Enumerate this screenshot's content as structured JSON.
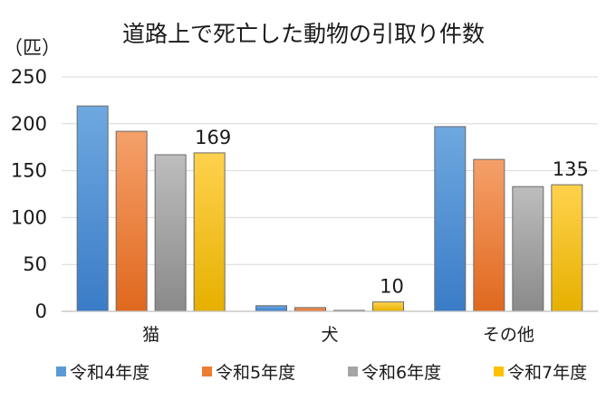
{
  "chart_data": {
    "type": "bar",
    "title": "道路上で死亡した動物の引取り件数",
    "ylabel": "（匹）",
    "xlabel": "",
    "categories": [
      "猫",
      "犬",
      "その他"
    ],
    "ylim": [
      0,
      250
    ],
    "yticks": [
      0,
      50,
      100,
      150,
      200,
      250
    ],
    "grid": true,
    "legend_position": "bottom",
    "series": [
      {
        "name": "令和4年度",
        "values": [
          219,
          6,
          197
        ],
        "color_top": "#6fa8e0",
        "color_bottom": "#3a7cc7",
        "legend_color": "#5b9bd5"
      },
      {
        "name": "令和5年度",
        "values": [
          192,
          4,
          162
        ],
        "color_top": "#f5a06a",
        "color_bottom": "#e0681e",
        "legend_color": "#ed7d31"
      },
      {
        "name": "令和6年度",
        "values": [
          167,
          1,
          133
        ],
        "color_top": "#bdbdbd",
        "color_bottom": "#8a8a8a",
        "legend_color": "#a5a5a5"
      },
      {
        "name": "令和7年度",
        "values": [
          169,
          10,
          135
        ],
        "color_top": "#ffd24d",
        "color_bottom": "#e6b000",
        "legend_color": "#ffc000"
      }
    ],
    "data_labels": [
      {
        "series": 3,
        "category": 0,
        "text": "169"
      },
      {
        "series": 3,
        "category": 1,
        "text": "10"
      },
      {
        "series": 3,
        "category": 2,
        "text": "135"
      }
    ]
  }
}
